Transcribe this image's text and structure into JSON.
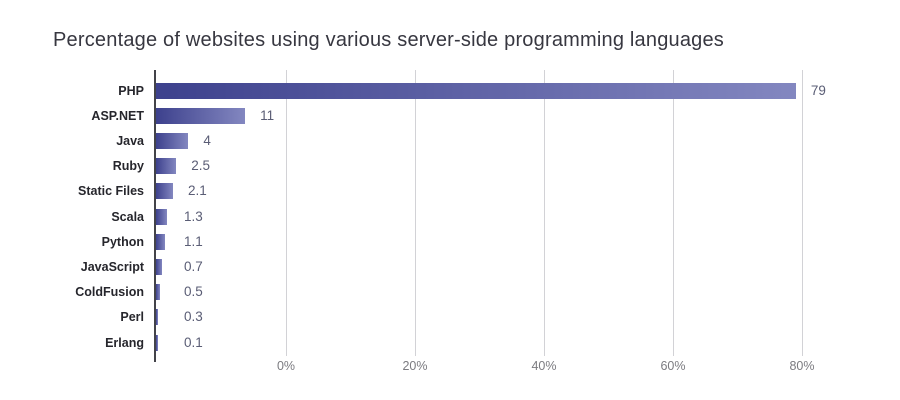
{
  "title": "Percentage of websites using various server-side programming languages",
  "colors": {
    "background": "#ffffff",
    "bar_gradient_start": "#3d418d",
    "bar_gradient_end": "#8387c0",
    "axis_line": "#434349",
    "gridline": "#d2d2d6",
    "title_text": "#373740",
    "category_text": "#26262c",
    "value_text": "#5a5d75",
    "tick_text": "#7b7b80"
  },
  "chart_data": {
    "type": "bar",
    "orientation": "horizontal",
    "title": "Percentage of websites using various server-side programming languages",
    "categories": [
      "PHP",
      "ASP.NET",
      "Java",
      "Ruby",
      "Static Files",
      "Scala",
      "Python",
      "JavaScript",
      "ColdFusion",
      "Perl",
      "Erlang"
    ],
    "values": [
      79,
      11,
      4,
      2.5,
      2.1,
      1.3,
      1.1,
      0.7,
      0.5,
      0.3,
      0.1
    ],
    "value_labels": [
      "79",
      "11",
      "4",
      "2.5",
      "2.1",
      "1.3",
      "1.1",
      "0.7",
      "0.5",
      "0.3",
      "0.1"
    ],
    "xlabel": "",
    "ylabel": "",
    "x_tick_values": [
      0,
      20,
      40,
      60,
      80
    ],
    "x_tick_labels": [
      "0%",
      "20%",
      "40%",
      "60%",
      "80%"
    ],
    "grid": "vertical-only",
    "legend": false,
    "value_labels_shown": true
  }
}
